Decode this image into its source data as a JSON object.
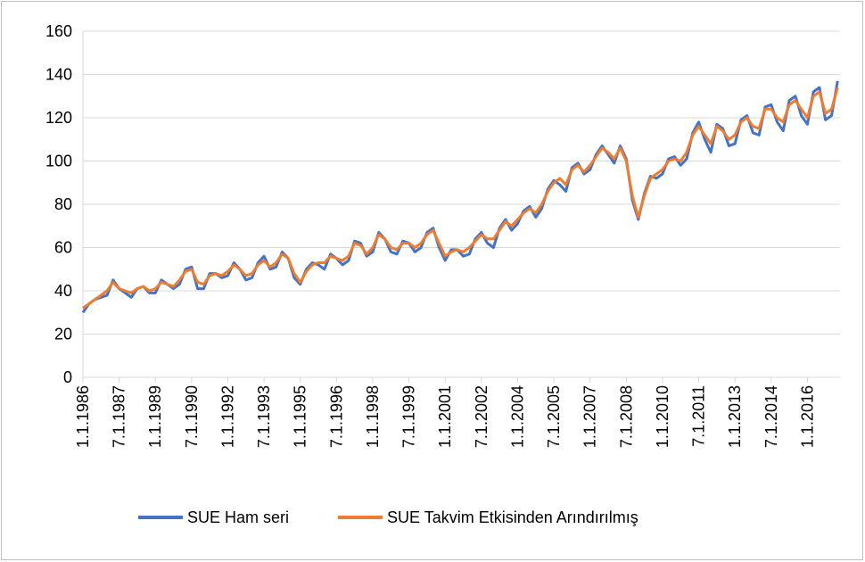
{
  "chart_data": {
    "type": "line",
    "categories": [
      "1.1.1986",
      null,
      null,
      null,
      null,
      null,
      "7.1.1987",
      null,
      null,
      null,
      null,
      null,
      "1.1.1989",
      null,
      null,
      null,
      null,
      null,
      "7.1.1990",
      null,
      null,
      null,
      null,
      null,
      "1.1.1992",
      null,
      null,
      null,
      null,
      null,
      "7.1.1993",
      null,
      null,
      null,
      null,
      null,
      "1.1.1995",
      null,
      null,
      null,
      null,
      null,
      "7.1.1996",
      null,
      null,
      null,
      null,
      null,
      "1.1.1998",
      null,
      null,
      null,
      null,
      null,
      "7.1.1999",
      null,
      null,
      null,
      null,
      null,
      "1.1.2001",
      null,
      null,
      null,
      null,
      null,
      "7.1.2002",
      null,
      null,
      null,
      null,
      null,
      "1.1.2004",
      null,
      null,
      null,
      null,
      null,
      "7.1.2005",
      null,
      null,
      null,
      null,
      null,
      "1.1.2007",
      null,
      null,
      null,
      null,
      null,
      "7.1.2008",
      null,
      null,
      null,
      null,
      null,
      "1.1.2010",
      null,
      null,
      null,
      null,
      null,
      "7.1.2011",
      null,
      null,
      null,
      null,
      null,
      "1.1.2013",
      null,
      null,
      null,
      null,
      null,
      "7.1.2014",
      null,
      null,
      null,
      null,
      null,
      "1.1.2016",
      null,
      null,
      null,
      null,
      null
    ],
    "series": [
      {
        "name": "SUE Ham seri",
        "color": "#4472c4",
        "values": [
          30,
          34,
          36,
          37,
          38,
          45,
          41,
          39,
          37,
          41,
          42,
          39,
          39,
          45,
          43,
          41,
          43,
          50,
          51,
          41,
          41,
          48,
          48,
          46,
          47,
          53,
          50,
          45,
          46,
          53,
          56,
          50,
          51,
          58,
          55,
          46,
          43,
          50,
          53,
          52,
          50,
          57,
          55,
          52,
          54,
          63,
          62,
          56,
          58,
          67,
          64,
          58,
          57,
          63,
          62,
          58,
          60,
          67,
          69,
          60,
          54,
          59,
          59,
          56,
          57,
          64,
          67,
          62,
          60,
          69,
          73,
          68,
          71,
          77,
          79,
          74,
          78,
          87,
          91,
          89,
          86,
          97,
          99,
          94,
          96,
          103,
          107,
          103,
          99,
          107,
          101,
          82,
          73,
          85,
          93,
          92,
          94,
          101,
          102,
          98,
          101,
          113,
          118,
          110,
          104,
          117,
          115,
          107,
          108,
          119,
          121,
          113,
          112,
          125,
          126,
          118,
          114,
          128,
          130,
          121,
          117,
          132,
          134,
          119,
          121,
          137
        ]
      },
      {
        "name": "SUE Takvim Etkisinden Arındırılmış",
        "color": "#ed7d31",
        "values": [
          32,
          34,
          36,
          38,
          40,
          44,
          41,
          40,
          39,
          41,
          42,
          40,
          41,
          44,
          43,
          42,
          45,
          49,
          50,
          44,
          43,
          47,
          48,
          47,
          49,
          52,
          50,
          47,
          48,
          52,
          54,
          51,
          53,
          57,
          55,
          48,
          44,
          49,
          52,
          53,
          53,
          56,
          55,
          54,
          56,
          62,
          61,
          57,
          60,
          66,
          64,
          60,
          59,
          62,
          62,
          60,
          62,
          66,
          68,
          62,
          56,
          58,
          59,
          58,
          60,
          63,
          66,
          64,
          64,
          68,
          72,
          70,
          73,
          76,
          78,
          76,
          80,
          86,
          90,
          92,
          89,
          96,
          98,
          95,
          98,
          102,
          106,
          104,
          101,
          106,
          100,
          84,
          74,
          84,
          92,
          94,
          96,
          100,
          101,
          100,
          104,
          112,
          116,
          112,
          108,
          116,
          114,
          110,
          112,
          118,
          120,
          116,
          115,
          124,
          124,
          120,
          118,
          126,
          128,
          124,
          120,
          130,
          132,
          122,
          124,
          134
        ]
      }
    ],
    "ylim": [
      0,
      160
    ],
    "yticks": [
      0,
      20,
      40,
      60,
      80,
      100,
      120,
      140,
      160
    ],
    "grid": true,
    "legend": "bottom"
  }
}
